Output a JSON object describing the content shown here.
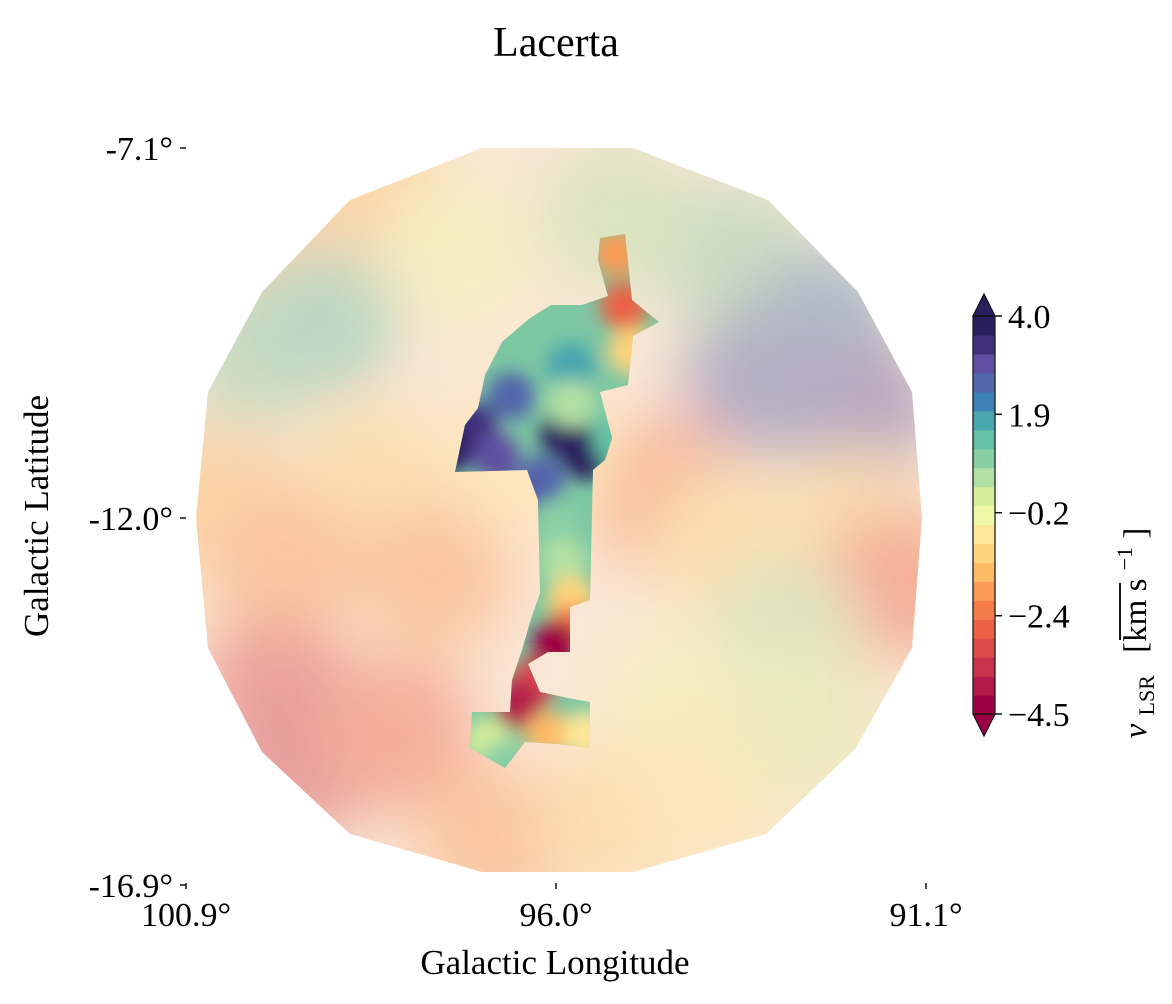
{
  "chart_data": {
    "type": "heatmap",
    "title": "Lacerta",
    "xlabel": "Galactic Longitude",
    "ylabel": "Galactic Latitude",
    "xlim": [
      100.9,
      91.1
    ],
    "ylim": [
      -16.9,
      -7.1
    ],
    "x_ticks": [
      "100.9°",
      "96.0°",
      "91.1°"
    ],
    "y_ticks": [
      "-7.1°",
      "-12.0°",
      "-16.9°"
    ],
    "colorbar": {
      "label_main": "v",
      "label_sub": "LSR",
      "label_units": "[km s",
      "label_exp": "−1",
      "label_close": "]",
      "range": [
        -4.5,
        4.0
      ],
      "ticks": [
        "4.0",
        "1.9",
        "−0.2",
        "−2.4",
        "−4.5"
      ],
      "tick_values": [
        4.0,
        1.9,
        -0.2,
        -2.4,
        -4.5
      ],
      "extend": "both",
      "colormap": "Spectral",
      "colors": [
        "#9e0142",
        "#b31b4b",
        "#c8344b",
        "#dc4a4c",
        "#ec6145",
        "#f57d4a",
        "#fa9a56",
        "#fcb966",
        "#fdd37c",
        "#fee798",
        "#eff8a6",
        "#d5ee9b",
        "#b2e0a3",
        "#89cfa4",
        "#66c2a5",
        "#49a5b0",
        "#3e81b7",
        "#5365ab",
        "#5e4fa2",
        "#3f2f7d",
        "#2a1f5e"
      ]
    },
    "mask_highlight": "opaque filament region in center; surrounding field semi-transparent",
    "field_values": [
      {
        "l": 99.8,
        "b": -8.2,
        "v": -1.6
      },
      {
        "l": 98.5,
        "b": -7.6,
        "v": -1.3
      },
      {
        "l": 97.3,
        "b": -8.5,
        "v": -0.4
      },
      {
        "l": 95.2,
        "b": -8.0,
        "v": 0.4
      },
      {
        "l": 93.6,
        "b": -8.6,
        "v": 1.0
      },
      {
        "l": 92.5,
        "b": -9.5,
        "v": 2.2
      },
      {
        "l": 92.0,
        "b": -10.6,
        "v": 2.9
      },
      {
        "l": 93.3,
        "b": -10.2,
        "v": 2.4
      },
      {
        "l": 100.0,
        "b": -9.8,
        "v": 0.8
      },
      {
        "l": 99.1,
        "b": -9.4,
        "v": 1.3
      },
      {
        "l": 98.4,
        "b": -11.5,
        "v": -0.9
      },
      {
        "l": 100.5,
        "b": -11.8,
        "v": -1.4
      },
      {
        "l": 99.6,
        "b": -12.6,
        "v": -1.7
      },
      {
        "l": 97.6,
        "b": -12.8,
        "v": -2.0
      },
      {
        "l": 94.6,
        "b": -11.7,
        "v": -2.1
      },
      {
        "l": 93.7,
        "b": -12.4,
        "v": -1.0
      },
      {
        "l": 92.1,
        "b": -12.2,
        "v": -0.9
      },
      {
        "l": 91.5,
        "b": -12.9,
        "v": -2.6
      },
      {
        "l": 93.0,
        "b": -13.6,
        "v": 0.6
      },
      {
        "l": 94.4,
        "b": -14.5,
        "v": -0.3
      },
      {
        "l": 99.7,
        "b": -14.3,
        "v": -2.9
      },
      {
        "l": 99.3,
        "b": -15.2,
        "v": -3.5
      },
      {
        "l": 98.1,
        "b": -14.9,
        "v": -2.7
      },
      {
        "l": 96.8,
        "b": -16.3,
        "v": -1.9
      },
      {
        "l": 95.2,
        "b": -16.0,
        "v": -1.2
      },
      {
        "l": 93.9,
        "b": -15.6,
        "v": -0.6
      },
      {
        "l": 92.7,
        "b": -14.7,
        "v": 0.3
      },
      {
        "l": 96.3,
        "b": -11.2,
        "v": -0.5
      }
    ],
    "filament_values": [
      {
        "l": 95.2,
        "b": -8.5,
        "v": -1.8
      },
      {
        "l": 95.1,
        "b": -9.2,
        "v": -2.5
      },
      {
        "l": 95.0,
        "b": -9.8,
        "v": -1.0
      },
      {
        "l": 95.8,
        "b": -10.0,
        "v": 1.6
      },
      {
        "l": 96.6,
        "b": -10.4,
        "v": 2.6
      },
      {
        "l": 97.1,
        "b": -10.8,
        "v": 3.4
      },
      {
        "l": 97.4,
        "b": -11.1,
        "v": 4.2
      },
      {
        "l": 96.8,
        "b": -11.2,
        "v": 3.0
      },
      {
        "l": 95.9,
        "b": -10.9,
        "v": 3.9
      },
      {
        "l": 96.2,
        "b": -11.5,
        "v": 2.4
      },
      {
        "l": 95.6,
        "b": -11.2,
        "v": 3.6
      },
      {
        "l": 95.2,
        "b": -11.0,
        "v": 1.3
      },
      {
        "l": 95.8,
        "b": -10.5,
        "v": 0.6
      },
      {
        "l": 96.6,
        "b": -11.8,
        "v": 2.8
      },
      {
        "l": 96.0,
        "b": -12.1,
        "v": 0.9
      },
      {
        "l": 95.9,
        "b": -12.6,
        "v": 0.4
      },
      {
        "l": 95.8,
        "b": -13.1,
        "v": -1.2
      },
      {
        "l": 95.8,
        "b": -13.5,
        "v": -2.2
      },
      {
        "l": 96.0,
        "b": -13.7,
        "v": -4.3
      },
      {
        "l": 96.3,
        "b": -14.2,
        "v": -2.9
      },
      {
        "l": 96.5,
        "b": -14.5,
        "v": -4.0
      },
      {
        "l": 96.1,
        "b": -14.9,
        "v": -1.5
      },
      {
        "l": 95.6,
        "b": -14.9,
        "v": -0.8
      },
      {
        "l": 96.9,
        "b": -15.0,
        "v": 0.3
      },
      {
        "l": 96.7,
        "b": -15.3,
        "v": 1.0
      }
    ]
  }
}
